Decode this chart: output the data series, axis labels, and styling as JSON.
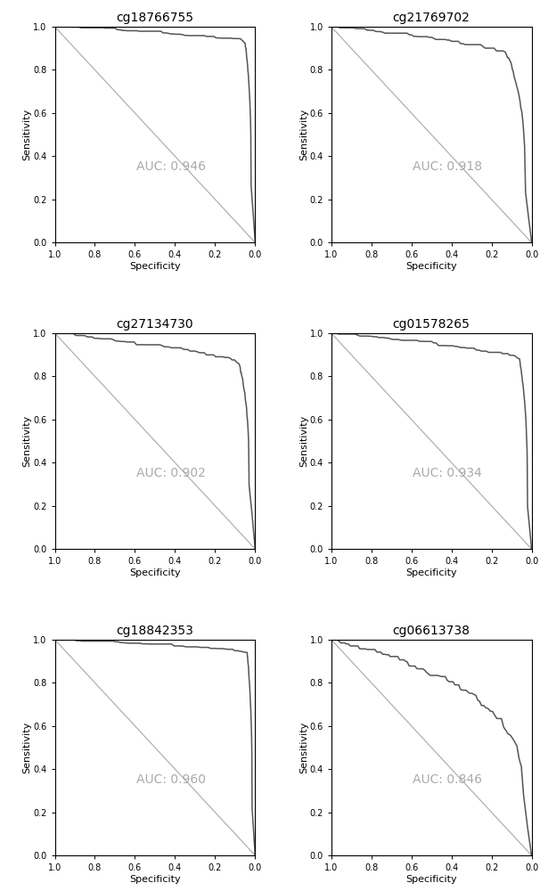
{
  "plots": [
    {
      "title": "cg18766755",
      "auc": "AUC: 0.946",
      "jump_fpr": 0.02,
      "jump_tpr": 0.27,
      "mid_fpr": 0.05,
      "mid_tpr": 0.93,
      "noise": 0.004
    },
    {
      "title": "cg21769702",
      "auc": "AUC: 0.918",
      "jump_fpr": 0.03,
      "jump_tpr": 0.23,
      "mid_fpr": 0.12,
      "mid_tpr": 0.87,
      "noise": 0.006
    },
    {
      "title": "cg27134730",
      "auc": "AUC: 0.902",
      "jump_fpr": 0.03,
      "jump_tpr": 0.3,
      "mid_fpr": 0.08,
      "mid_tpr": 0.86,
      "noise": 0.005
    },
    {
      "title": "cg01578265",
      "auc": "AUC: 0.934",
      "jump_fpr": 0.02,
      "jump_tpr": 0.2,
      "mid_fpr": 0.06,
      "mid_tpr": 0.88,
      "noise": 0.005
    },
    {
      "title": "cg18842353",
      "auc": "AUC: 0.960",
      "jump_fpr": 0.015,
      "jump_tpr": 0.22,
      "mid_fpr": 0.04,
      "mid_tpr": 0.94,
      "noise": 0.003
    },
    {
      "title": "cg06613738",
      "auc": "AUC: 0.846",
      "jump_fpr": 0.04,
      "jump_tpr": 0.27,
      "mid_fpr": 0.25,
      "mid_tpr": 0.7,
      "noise": 0.009
    }
  ],
  "curve_color": "#555555",
  "diag_color": "#b0b0b0",
  "auc_color": "#aaaaaa",
  "bg_color": "#ffffff",
  "tick_label_size": 7,
  "axis_label_size": 8,
  "title_size": 10,
  "auc_fontsize": 10
}
